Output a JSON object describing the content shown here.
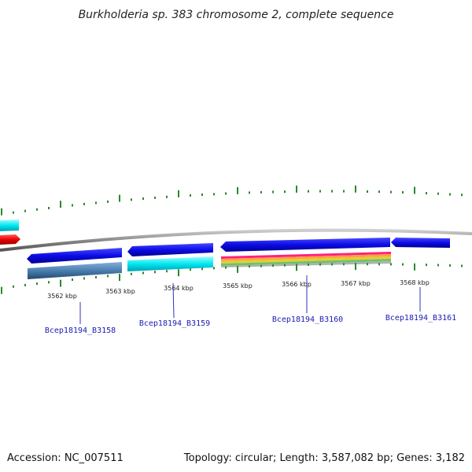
{
  "title": "Burkholderia sp. 383 chromosome 2, complete sequence",
  "footer": {
    "accession": "Accession: NC_007511",
    "summary": "Topology: circular; Length: 3,587,082 bp; Genes: 3,182"
  },
  "ticks": [
    {
      "label": "3562 kbp"
    },
    {
      "label": "3563 kbp"
    },
    {
      "label": "3564 kbp"
    },
    {
      "label": "3565 kbp"
    },
    {
      "label": "3566 kbp"
    },
    {
      "label": "3567 kbp"
    },
    {
      "label": "3568 kbp"
    }
  ],
  "genes": [
    {
      "label": "Bcep18194_B3158"
    },
    {
      "label": "Bcep18194_B3159"
    },
    {
      "label": "Bcep18194_B3160"
    },
    {
      "label": "Bcep18194_B3161"
    }
  ],
  "colors": {
    "backbone": "#888888",
    "cds": "#1010e0",
    "cyan_feature": "#00e8f0",
    "red_feature": "#ee0000",
    "steelblue_feature": "#4a7fb0",
    "tick": "#2a8a2a"
  }
}
